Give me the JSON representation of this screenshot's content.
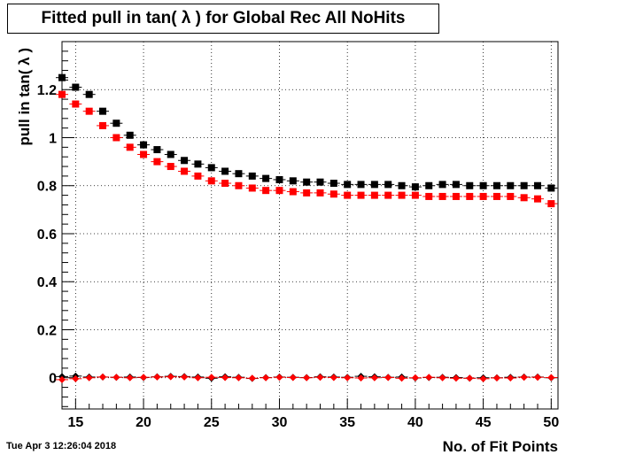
{
  "header": {
    "title": "Fitted pull in tan( λ ) for Global Rec All NoHits",
    "timestamp": "Tue Apr  3 12:26:04 2018"
  },
  "chart_data": {
    "type": "scatter",
    "title": "Fitted pull in tan( λ ) for Global Rec All NoHits",
    "xlabel": "No. of Fit Points",
    "ylabel": "pull in tan( λ )",
    "xlim": [
      14,
      50.5
    ],
    "ylim": [
      -0.13,
      1.4
    ],
    "xticks": [
      15,
      20,
      25,
      30,
      35,
      40,
      45,
      50
    ],
    "xtick_labels": [
      "15",
      "20",
      "25",
      "30",
      "35",
      "40",
      "45",
      "50"
    ],
    "yticks": [
      0,
      0.2,
      0.4,
      0.6,
      0.8,
      1,
      1.2
    ],
    "ytick_labels": [
      "0",
      "0.2",
      "0.4",
      "0.6",
      "0.8",
      "1",
      "1.2"
    ],
    "grid": true,
    "x": [
      14,
      15,
      16,
      17,
      18,
      19,
      20,
      21,
      22,
      23,
      24,
      25,
      26,
      27,
      28,
      29,
      30,
      31,
      32,
      33,
      34,
      35,
      36,
      37,
      38,
      39,
      40,
      41,
      42,
      43,
      44,
      45,
      46,
      47,
      48,
      49,
      50
    ],
    "series": [
      {
        "marker": "square",
        "color": "#000000",
        "values": [
          1.25,
          1.21,
          1.18,
          1.11,
          1.06,
          1.01,
          0.97,
          0.95,
          0.93,
          0.905,
          0.89,
          0.875,
          0.86,
          0.85,
          0.84,
          0.83,
          0.825,
          0.82,
          0.815,
          0.815,
          0.81,
          0.805,
          0.805,
          0.805,
          0.805,
          0.8,
          0.795,
          0.8,
          0.805,
          0.805,
          0.8,
          0.8,
          0.8,
          0.8,
          0.8,
          0.8,
          0.79
        ]
      },
      {
        "marker": "square",
        "color": "#ff0000",
        "values": [
          1.18,
          1.14,
          1.11,
          1.05,
          1.0,
          0.96,
          0.93,
          0.9,
          0.88,
          0.86,
          0.84,
          0.82,
          0.81,
          0.8,
          0.79,
          0.78,
          0.78,
          0.775,
          0.77,
          0.77,
          0.765,
          0.76,
          0.76,
          0.76,
          0.76,
          0.76,
          0.76,
          0.755,
          0.755,
          0.755,
          0.755,
          0.755,
          0.755,
          0.755,
          0.75,
          0.745,
          0.725
        ]
      },
      {
        "marker": "diamond",
        "color": "#000000",
        "values": [
          0.005,
          0.007,
          0.003,
          0.003,
          0.002,
          0.003,
          0.001,
          0.004,
          0.006,
          0.005,
          0.003,
          -0.002,
          0.004,
          0.002,
          -0.003,
          0.001,
          0.003,
          0.002,
          0.001,
          0.004,
          0.003,
          0.002,
          0.006,
          0.004,
          0.002,
          0.003,
          -0.001,
          0.001,
          0.002,
          0.001,
          -0.002,
          0.0,
          0.0,
          0.002,
          0.003,
          0.003,
          0.0
        ]
      },
      {
        "marker": "diamond",
        "color": "#ff0000",
        "values": [
          -0.008,
          -0.004,
          0.0,
          0.003,
          0.002,
          0.0,
          0.002,
          0.003,
          0.004,
          0.003,
          0.0,
          0.002,
          0.001,
          0.0,
          -0.002,
          0.0,
          0.002,
          0.001,
          0.0,
          0.002,
          0.001,
          0.0,
          -0.001,
          0.0,
          0.001,
          -0.002,
          0.0,
          0.002,
          0.0,
          -0.002,
          -0.002,
          -0.004,
          -0.001,
          -0.001,
          0.002,
          0.002,
          0.001
        ]
      }
    ]
  }
}
